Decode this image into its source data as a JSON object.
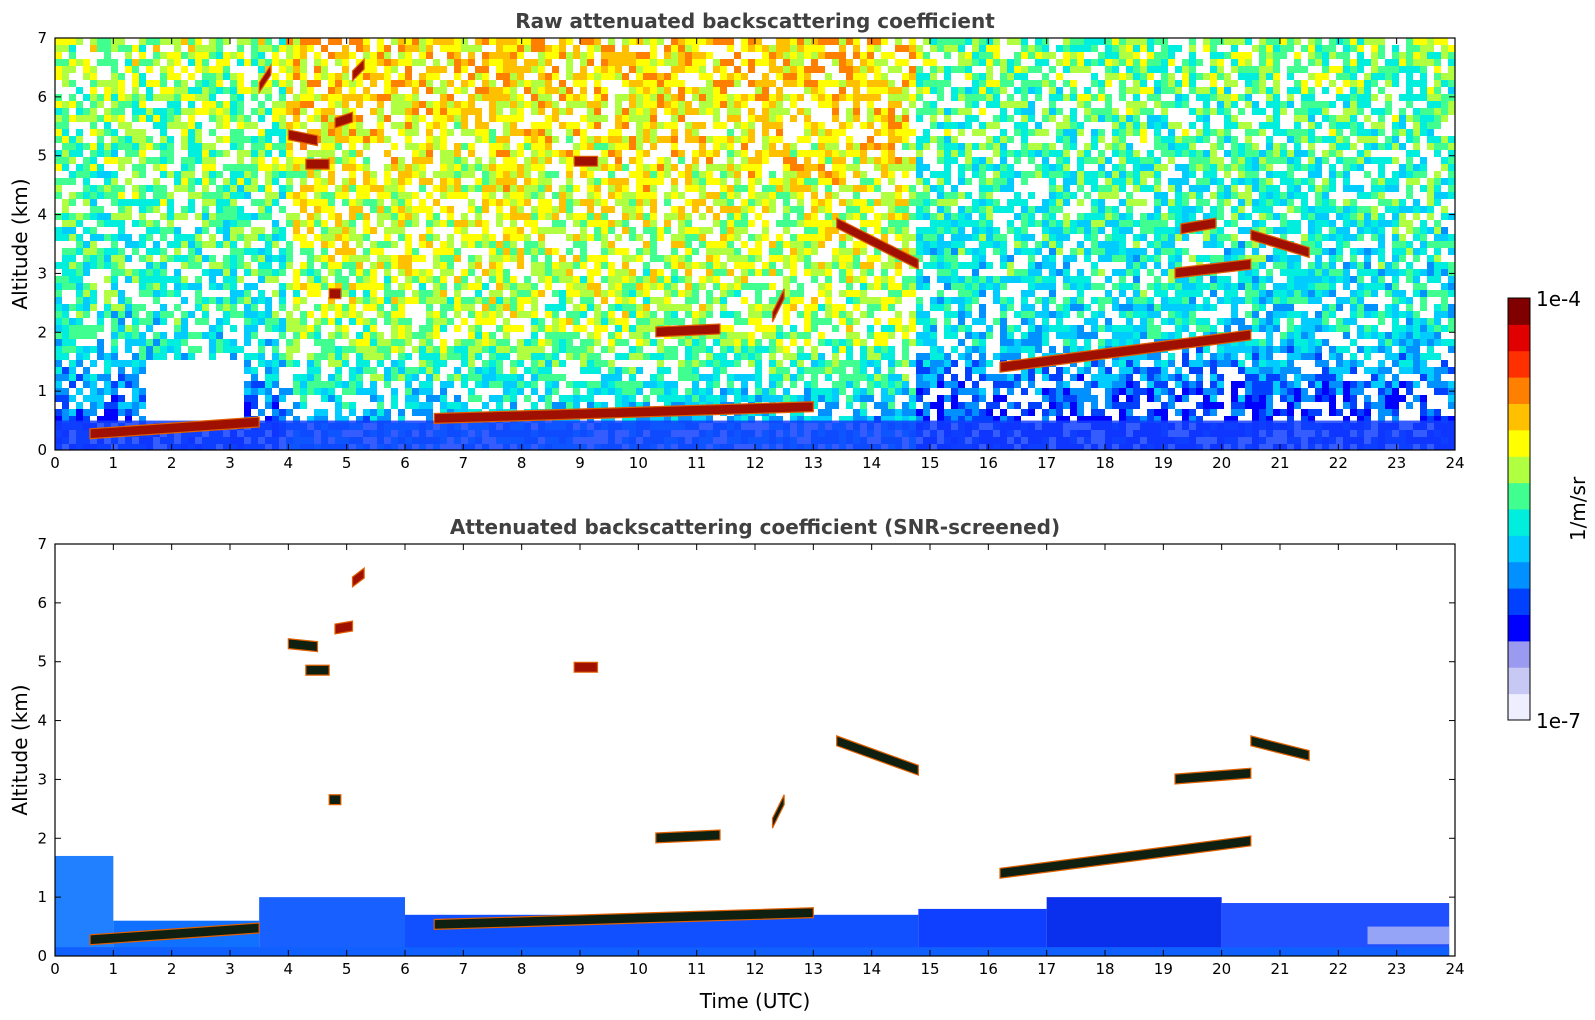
{
  "chart_data": [
    {
      "type": "heatmap",
      "title": "Raw attenuated backscattering coefficient",
      "xlabel": "",
      "ylabel": "Altitude (km)",
      "xlim": [
        0,
        24
      ],
      "ylim": [
        0,
        7
      ],
      "x_ticks": [
        "0",
        "1",
        "2",
        "3",
        "4",
        "5",
        "6",
        "7",
        "8",
        "9",
        "10",
        "11",
        "12",
        "13",
        "14",
        "15",
        "16",
        "17",
        "18",
        "19",
        "20",
        "21",
        "22",
        "23",
        "24"
      ],
      "y_ticks": [
        "0",
        "1",
        "2",
        "3",
        "4",
        "5",
        "6",
        "7"
      ],
      "background": "noisy",
      "layers": [
        {
          "x0": 0.6,
          "x1": 3.5,
          "alt0": 0.22,
          "alt1": 0.42,
          "level": "high"
        },
        {
          "x0": 6.5,
          "x1": 13.0,
          "alt0": 0.48,
          "alt1": 0.68,
          "level": "high"
        },
        {
          "x0": 16.2,
          "x1": 20.5,
          "alt0": 1.35,
          "alt1": 1.9,
          "level": "high"
        },
        {
          "x0": 10.3,
          "x1": 11.4,
          "alt0": 1.95,
          "alt1": 2.0,
          "level": "high"
        },
        {
          "x0": 13.4,
          "x1": 14.8,
          "alt0": 3.8,
          "alt1": 3.1,
          "level": "high"
        },
        {
          "x0": 19.2,
          "x1": 20.5,
          "alt0": 2.95,
          "alt1": 3.1,
          "level": "high"
        },
        {
          "x0": 20.5,
          "x1": 21.5,
          "alt0": 3.6,
          "alt1": 3.3,
          "level": "high"
        },
        {
          "x0": 19.3,
          "x1": 19.9,
          "alt0": 3.7,
          "alt1": 3.8,
          "level": "high"
        },
        {
          "x0": 4.0,
          "x1": 4.5,
          "alt0": 5.3,
          "alt1": 5.2,
          "level": "high"
        },
        {
          "x0": 4.3,
          "x1": 4.7,
          "alt0": 4.8,
          "alt1": 4.8,
          "level": "high"
        },
        {
          "x0": 4.8,
          "x1": 5.1,
          "alt0": 5.5,
          "alt1": 5.6,
          "level": "high"
        },
        {
          "x0": 8.9,
          "x1": 9.3,
          "alt0": 4.85,
          "alt1": 4.85,
          "level": "high"
        },
        {
          "x0": 12.3,
          "x1": 12.5,
          "alt0": 2.2,
          "alt1": 2.6,
          "level": "high"
        },
        {
          "x0": 4.7,
          "x1": 4.9,
          "alt0": 2.6,
          "alt1": 2.6,
          "level": "high"
        },
        {
          "x0": 3.5,
          "x1": 3.7,
          "alt0": 6.1,
          "alt1": 6.4,
          "level": "high"
        },
        {
          "x0": 5.1,
          "x1": 5.3,
          "alt0": 6.3,
          "alt1": 6.5,
          "level": "high"
        }
      ]
    },
    {
      "type": "heatmap",
      "title": "Attenuated backscattering coefficient (SNR-screened)",
      "xlabel": "Time (UTC)",
      "ylabel": "Altitude (km)",
      "xlim": [
        0,
        24
      ],
      "ylim": [
        0,
        7
      ],
      "x_ticks": [
        "0",
        "1",
        "2",
        "3",
        "4",
        "5",
        "6",
        "7",
        "8",
        "9",
        "10",
        "11",
        "12",
        "13",
        "14",
        "15",
        "16",
        "17",
        "18",
        "19",
        "20",
        "21",
        "22",
        "23",
        "24"
      ],
      "y_ticks": [
        "0",
        "1",
        "2",
        "3",
        "4",
        "5",
        "6",
        "7"
      ],
      "background": "screened",
      "layers": [
        {
          "x0": 0.6,
          "x1": 3.5,
          "alt0": 0.22,
          "alt1": 0.42,
          "level": "saturated"
        },
        {
          "x0": 6.5,
          "x1": 13.0,
          "alt0": 0.48,
          "alt1": 0.68,
          "level": "saturated"
        },
        {
          "x0": 16.2,
          "x1": 20.5,
          "alt0": 1.35,
          "alt1": 1.9,
          "level": "saturated"
        },
        {
          "x0": 10.3,
          "x1": 11.4,
          "alt0": 1.95,
          "alt1": 2.0,
          "level": "saturated"
        },
        {
          "x0": 13.4,
          "x1": 14.8,
          "alt0": 3.6,
          "alt1": 3.1,
          "level": "saturated"
        },
        {
          "x0": 19.2,
          "x1": 20.5,
          "alt0": 2.95,
          "alt1": 3.05,
          "level": "saturated"
        },
        {
          "x0": 20.5,
          "x1": 21.5,
          "alt0": 3.6,
          "alt1": 3.35,
          "level": "saturated"
        },
        {
          "x0": 4.0,
          "x1": 4.5,
          "alt0": 5.25,
          "alt1": 5.2,
          "level": "saturated"
        },
        {
          "x0": 4.3,
          "x1": 4.7,
          "alt0": 4.8,
          "alt1": 4.8,
          "level": "saturated"
        },
        {
          "x0": 4.8,
          "x1": 5.1,
          "alt0": 5.5,
          "alt1": 5.55,
          "level": "high"
        },
        {
          "x0": 8.9,
          "x1": 9.3,
          "alt0": 4.85,
          "alt1": 4.85,
          "level": "high"
        },
        {
          "x0": 12.3,
          "x1": 12.5,
          "alt0": 2.2,
          "alt1": 2.6,
          "level": "saturated"
        },
        {
          "x0": 4.7,
          "x1": 4.9,
          "alt0": 2.6,
          "alt1": 2.6,
          "level": "saturated"
        },
        {
          "x0": 5.1,
          "x1": 5.3,
          "alt0": 6.3,
          "alt1": 6.45,
          "level": "high"
        }
      ]
    }
  ],
  "colorbar": {
    "label": "1/m/sr",
    "max_label": "1e-4",
    "min_label": "1e-7",
    "colors": [
      "#eeeeff",
      "#c8c8f4",
      "#9a9af0",
      "#0000ff",
      "#0040ff",
      "#0090ff",
      "#00ccff",
      "#00eedd",
      "#40ff90",
      "#b0ff40",
      "#ffff00",
      "#ffc000",
      "#ff8000",
      "#ff3000",
      "#e00000",
      "#800000"
    ]
  }
}
